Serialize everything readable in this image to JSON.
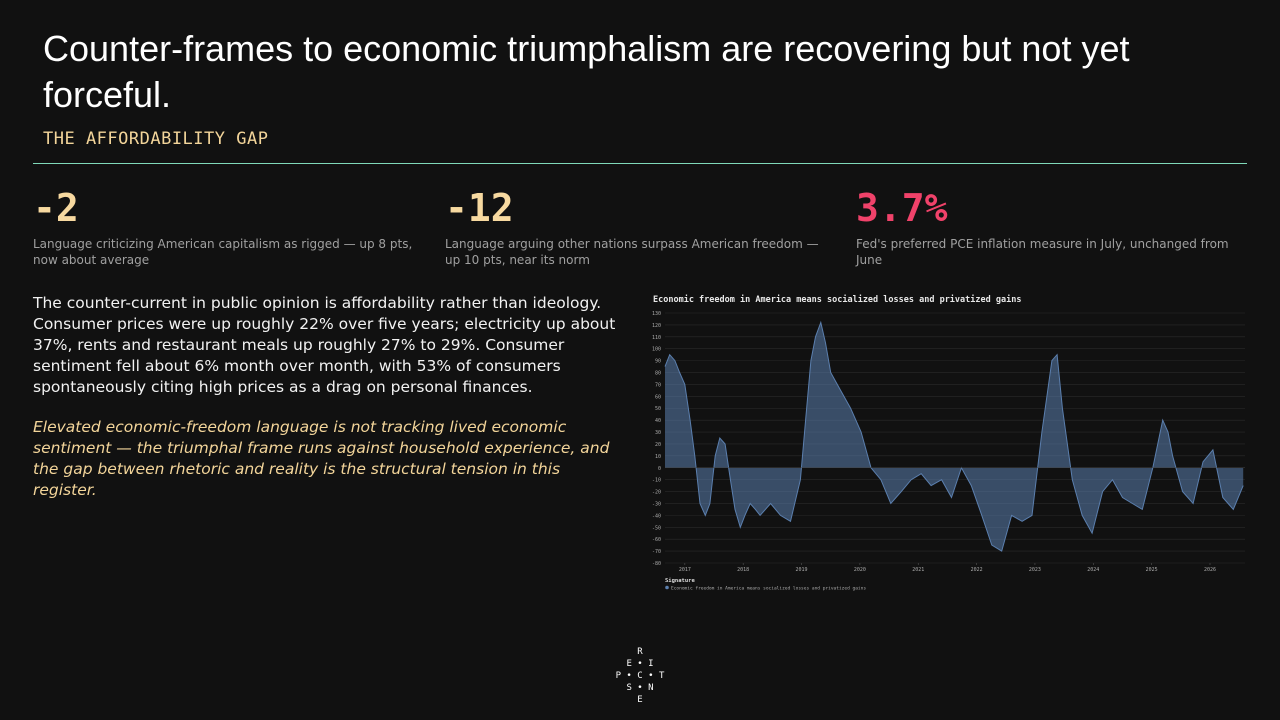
{
  "header": {
    "title": "Counter-frames to economic triumphalism are recovering but not yet forceful.",
    "subtitle": "THE AFFORDABILITY GAP"
  },
  "stats": [
    {
      "value": "-2",
      "text": "Language criticizing American capitalism as rigged — up 8 pts, now about average"
    },
    {
      "value": "-12",
      "text": "Language arguing other nations surpass American freedom — up 10 pts, near its norm"
    },
    {
      "value": "3.7%",
      "text": "Fed's preferred PCE inflation measure in July, unchanged from June"
    }
  ],
  "body": {
    "paragraph": "The counter-current in public opinion is affordability rather than ideology. Consumer prices were up roughly 22% over five years; electricity up about 37%, rents and restaurant meals up roughly 27% to 29%. Consumer sentiment fell about 6% month over month, with 53% of consumers spontaneously citing high prices as a drag on personal finances.",
    "note": "Elevated economic-freedom language is not tracking lived economic sentiment — the triumphal frame runs against household experience, and the gap between rhetoric and reality is the structural tension in this register."
  },
  "chart_data": {
    "type": "area",
    "title": "Economic freedom in America means socialized losses and privatized gains",
    "legend_title": "Signature",
    "series": [
      {
        "name": "Economic freedom in America means socialized losses and privatized gains",
        "color": "#5b7fae",
        "x": [
          2016.66,
          2016.74,
          2016.83,
          2016.91,
          2017.0,
          2017.09,
          2017.17,
          2017.26,
          2017.35,
          2017.43,
          2017.52,
          2017.6,
          2017.69,
          2017.78,
          2017.86,
          2017.95,
          2018.03,
          2018.12,
          2018.21,
          2018.29,
          2018.38,
          2018.47,
          2018.64,
          2018.81,
          2018.98,
          2019.07,
          2019.16,
          2019.24,
          2019.33,
          2019.41,
          2019.5,
          2019.67,
          2019.84,
          2020.02,
          2020.19,
          2020.36,
          2020.53,
          2020.71,
          2020.88,
          2021.05,
          2021.22,
          2021.4,
          2021.57,
          2021.74,
          2021.91,
          2022.09,
          2022.26,
          2022.43,
          2022.6,
          2022.78,
          2022.95,
          2023.12,
          2023.29,
          2023.38,
          2023.47,
          2023.64,
          2023.81,
          2023.98,
          2024.16,
          2024.33,
          2024.5,
          2024.67,
          2024.84,
          2025.02,
          2025.19,
          2025.28,
          2025.36,
          2025.53,
          2025.71,
          2025.88,
          2026.05,
          2026.22,
          2026.4,
          2026.57
        ],
        "values": [
          85,
          95,
          90,
          80,
          70,
          40,
          10,
          -30,
          -40,
          -30,
          10,
          25,
          20,
          -10,
          -35,
          -50,
          -40,
          -30,
          -35,
          -40,
          -35,
          -30,
          -40,
          -45,
          -10,
          40,
          90,
          110,
          122,
          105,
          80,
          65,
          50,
          30,
          0,
          -10,
          -30,
          -20,
          -10,
          -5,
          -15,
          -10,
          -25,
          0,
          -15,
          -40,
          -65,
          -70,
          -40,
          -45,
          -40,
          30,
          90,
          95,
          50,
          -10,
          -40,
          -55,
          -20,
          -10,
          -25,
          -30,
          -35,
          0,
          40,
          30,
          10,
          -20,
          -30,
          5,
          15,
          -25,
          -35,
          -15
        ]
      }
    ],
    "xlim": [
      2016.66,
      2026.6
    ],
    "xticks": [
      2017,
      2018,
      2019,
      2020,
      2021,
      2022,
      2023,
      2024,
      2025,
      2026
    ],
    "ylim": [
      -80,
      130
    ],
    "yticks": [
      -80,
      -70,
      -60,
      -50,
      -40,
      -30,
      -20,
      -10,
      0,
      10,
      20,
      30,
      40,
      50,
      60,
      70,
      80,
      90,
      100,
      110,
      120,
      130
    ],
    "grid": true
  },
  "logo": [
    [
      "R"
    ],
    [
      "E",
      "I"
    ],
    [
      "P",
      "C",
      "T"
    ],
    [
      "S",
      "N"
    ],
    [
      "E"
    ]
  ]
}
